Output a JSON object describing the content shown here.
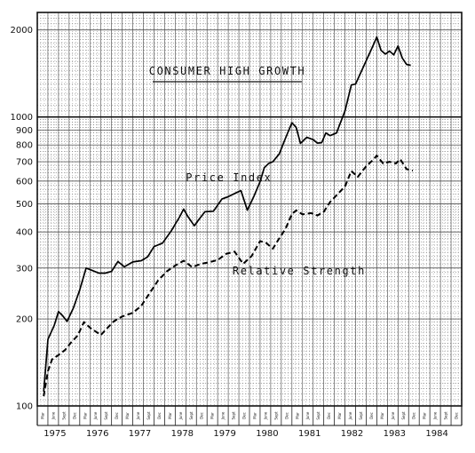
{
  "chart_data": {
    "type": "line",
    "title": "CONSUMER HIGH GROWTH",
    "scale": "semi-log",
    "ylim": [
      100,
      2300
    ],
    "y_ticks": [
      "100",
      "200",
      "300",
      "400",
      "500",
      "600",
      "700",
      "800",
      "900",
      "1000",
      "2000"
    ],
    "year_labels": [
      "1975",
      "1976",
      "1977",
      "1978",
      "1979",
      "1980",
      "1981",
      "1982",
      "1983",
      "1984"
    ],
    "quarter_labels": [
      "Mar",
      "June",
      "Sept",
      "Dec"
    ],
    "grid": true,
    "series": [
      {
        "name": "Price Index",
        "style": "solid",
        "points": [
          [
            1974.9,
            112
          ],
          [
            1975.0,
            170
          ],
          [
            1975.15,
            190
          ],
          [
            1975.25,
            212
          ],
          [
            1975.35,
            205
          ],
          [
            1975.45,
            196
          ],
          [
            1975.6,
            218
          ],
          [
            1975.75,
            252
          ],
          [
            1975.9,
            300
          ],
          [
            1976.05,
            294
          ],
          [
            1976.2,
            288
          ],
          [
            1976.35,
            288
          ],
          [
            1976.5,
            292
          ],
          [
            1976.65,
            316
          ],
          [
            1976.8,
            303
          ],
          [
            1977.0,
            315
          ],
          [
            1977.2,
            318
          ],
          [
            1977.35,
            328
          ],
          [
            1977.5,
            356
          ],
          [
            1977.7,
            366
          ],
          [
            1977.9,
            402
          ],
          [
            1978.1,
            450
          ],
          [
            1978.2,
            480
          ],
          [
            1978.3,
            452
          ],
          [
            1978.45,
            420
          ],
          [
            1978.55,
            440
          ],
          [
            1978.7,
            470
          ],
          [
            1978.9,
            472
          ],
          [
            1979.1,
            520
          ],
          [
            1979.25,
            530
          ],
          [
            1979.45,
            548
          ],
          [
            1979.55,
            556
          ],
          [
            1979.7,
            476
          ],
          [
            1979.85,
            530
          ],
          [
            1980.0,
            598
          ],
          [
            1980.1,
            668
          ],
          [
            1980.2,
            690
          ],
          [
            1980.3,
            700
          ],
          [
            1980.45,
            745
          ],
          [
            1980.55,
            810
          ],
          [
            1980.65,
            880
          ],
          [
            1980.75,
            955
          ],
          [
            1980.85,
            920
          ],
          [
            1980.95,
            810
          ],
          [
            1981.1,
            850
          ],
          [
            1981.25,
            835
          ],
          [
            1981.35,
            812
          ],
          [
            1981.45,
            815
          ],
          [
            1981.55,
            880
          ],
          [
            1981.65,
            862
          ],
          [
            1981.8,
            880
          ],
          [
            1982.0,
            1050
          ],
          [
            1982.15,
            1290
          ],
          [
            1982.25,
            1300
          ],
          [
            1982.45,
            1510
          ],
          [
            1982.65,
            1750
          ],
          [
            1982.75,
            1890
          ],
          [
            1982.85,
            1700
          ],
          [
            1982.95,
            1650
          ],
          [
            1983.05,
            1690
          ],
          [
            1983.15,
            1640
          ],
          [
            1983.25,
            1760
          ],
          [
            1983.35,
            1600
          ],
          [
            1983.45,
            1520
          ],
          [
            1983.55,
            1510
          ]
        ]
      },
      {
        "name": "Relative Strength",
        "style": "dashed",
        "points": [
          [
            1974.9,
            108
          ],
          [
            1975.0,
            132
          ],
          [
            1975.1,
            145
          ],
          [
            1975.25,
            150
          ],
          [
            1975.4,
            156
          ],
          [
            1975.55,
            166
          ],
          [
            1975.7,
            175
          ],
          [
            1975.85,
            195
          ],
          [
            1976.0,
            186
          ],
          [
            1976.15,
            180
          ],
          [
            1976.25,
            176
          ],
          [
            1976.4,
            186
          ],
          [
            1976.55,
            196
          ],
          [
            1976.75,
            204
          ],
          [
            1977.0,
            210
          ],
          [
            1977.2,
            222
          ],
          [
            1977.4,
            246
          ],
          [
            1977.6,
            272
          ],
          [
            1977.8,
            292
          ],
          [
            1978.0,
            306
          ],
          [
            1978.2,
            318
          ],
          [
            1978.4,
            302
          ],
          [
            1978.6,
            310
          ],
          [
            1978.8,
            314
          ],
          [
            1979.0,
            320
          ],
          [
            1979.2,
            336
          ],
          [
            1979.4,
            342
          ],
          [
            1979.6,
            310
          ],
          [
            1979.8,
            330
          ],
          [
            1980.0,
            372
          ],
          [
            1980.15,
            366
          ],
          [
            1980.3,
            350
          ],
          [
            1980.45,
            380
          ],
          [
            1980.6,
            410
          ],
          [
            1980.75,
            462
          ],
          [
            1980.85,
            475
          ],
          [
            1981.0,
            460
          ],
          [
            1981.2,
            465
          ],
          [
            1981.35,
            456
          ],
          [
            1981.5,
            470
          ],
          [
            1981.65,
            508
          ],
          [
            1981.85,
            545
          ],
          [
            1982.0,
            575
          ],
          [
            1982.15,
            650
          ],
          [
            1982.3,
            620
          ],
          [
            1982.5,
            675
          ],
          [
            1982.65,
            708
          ],
          [
            1982.75,
            735
          ],
          [
            1982.9,
            690
          ],
          [
            1983.05,
            700
          ],
          [
            1983.2,
            690
          ],
          [
            1983.3,
            715
          ],
          [
            1983.45,
            660
          ],
          [
            1983.6,
            652
          ]
        ]
      }
    ],
    "annotations": [
      {
        "text": "Price Index",
        "x": 1978.25,
        "y": 600
      },
      {
        "text": "Relative Strength",
        "x": 1979.35,
        "y": 285
      }
    ]
  }
}
